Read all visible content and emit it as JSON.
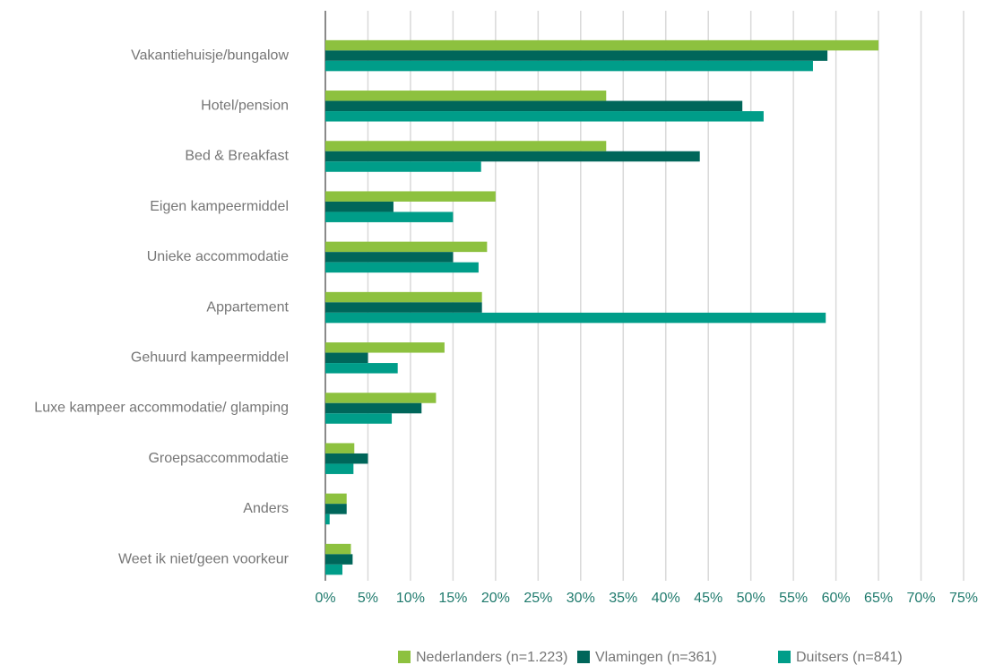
{
  "chart_data": {
    "type": "bar",
    "orientation": "horizontal",
    "categories": [
      "Vakantiehuisje/bungalow",
      "Hotel/pension",
      "Bed & Breakfast",
      "Eigen kampeermiddel",
      "Unieke accommodatie",
      "Appartement",
      "Gehuurd kampeermiddel",
      "Luxe kampeer accommodatie/ glamping",
      "Groepsaccommodatie",
      "Anders",
      "Weet ik niet/geen voorkeur"
    ],
    "series": [
      {
        "name": "Nederlanders (n=1.223)",
        "color": "#8dc13f",
        "values": [
          65,
          33,
          33,
          20,
          19,
          18.4,
          14,
          13,
          3.4,
          2.5,
          3
        ]
      },
      {
        "name": "Vlamingen (n=361)",
        "color": "#00665a",
        "values": [
          59,
          49,
          44,
          8,
          15,
          18.4,
          5,
          11.3,
          5,
          2.5,
          3.2
        ]
      },
      {
        "name": "Duitsers (n=841)",
        "color": "#009d89",
        "values": [
          57.3,
          51.5,
          18.3,
          15,
          18,
          58.8,
          8.5,
          7.8,
          3.3,
          0.5,
          2
        ]
      }
    ],
    "xlim": [
      0,
      75
    ],
    "xticks": [
      {
        "value": 0,
        "label": "0%"
      },
      {
        "value": 5,
        "label": "5%"
      },
      {
        "value": 10,
        "label": "10%"
      },
      {
        "value": 15,
        "label": "15%"
      },
      {
        "value": 20,
        "label": "20%"
      },
      {
        "value": 25,
        "label": "25%"
      },
      {
        "value": 30,
        "label": "30%"
      },
      {
        "value": 35,
        "label": "35%"
      },
      {
        "value": 40,
        "label": "40%"
      },
      {
        "value": 45,
        "label": "45%"
      },
      {
        "value": 50,
        "label": "50%"
      },
      {
        "value": 55,
        "label": "55%"
      },
      {
        "value": 60,
        "label": "60%"
      },
      {
        "value": 65,
        "label": "65%"
      },
      {
        "value": 70,
        "label": "70%"
      },
      {
        "value": 75,
        "label": "75%"
      }
    ],
    "grid": true,
    "legend": "bottom"
  }
}
